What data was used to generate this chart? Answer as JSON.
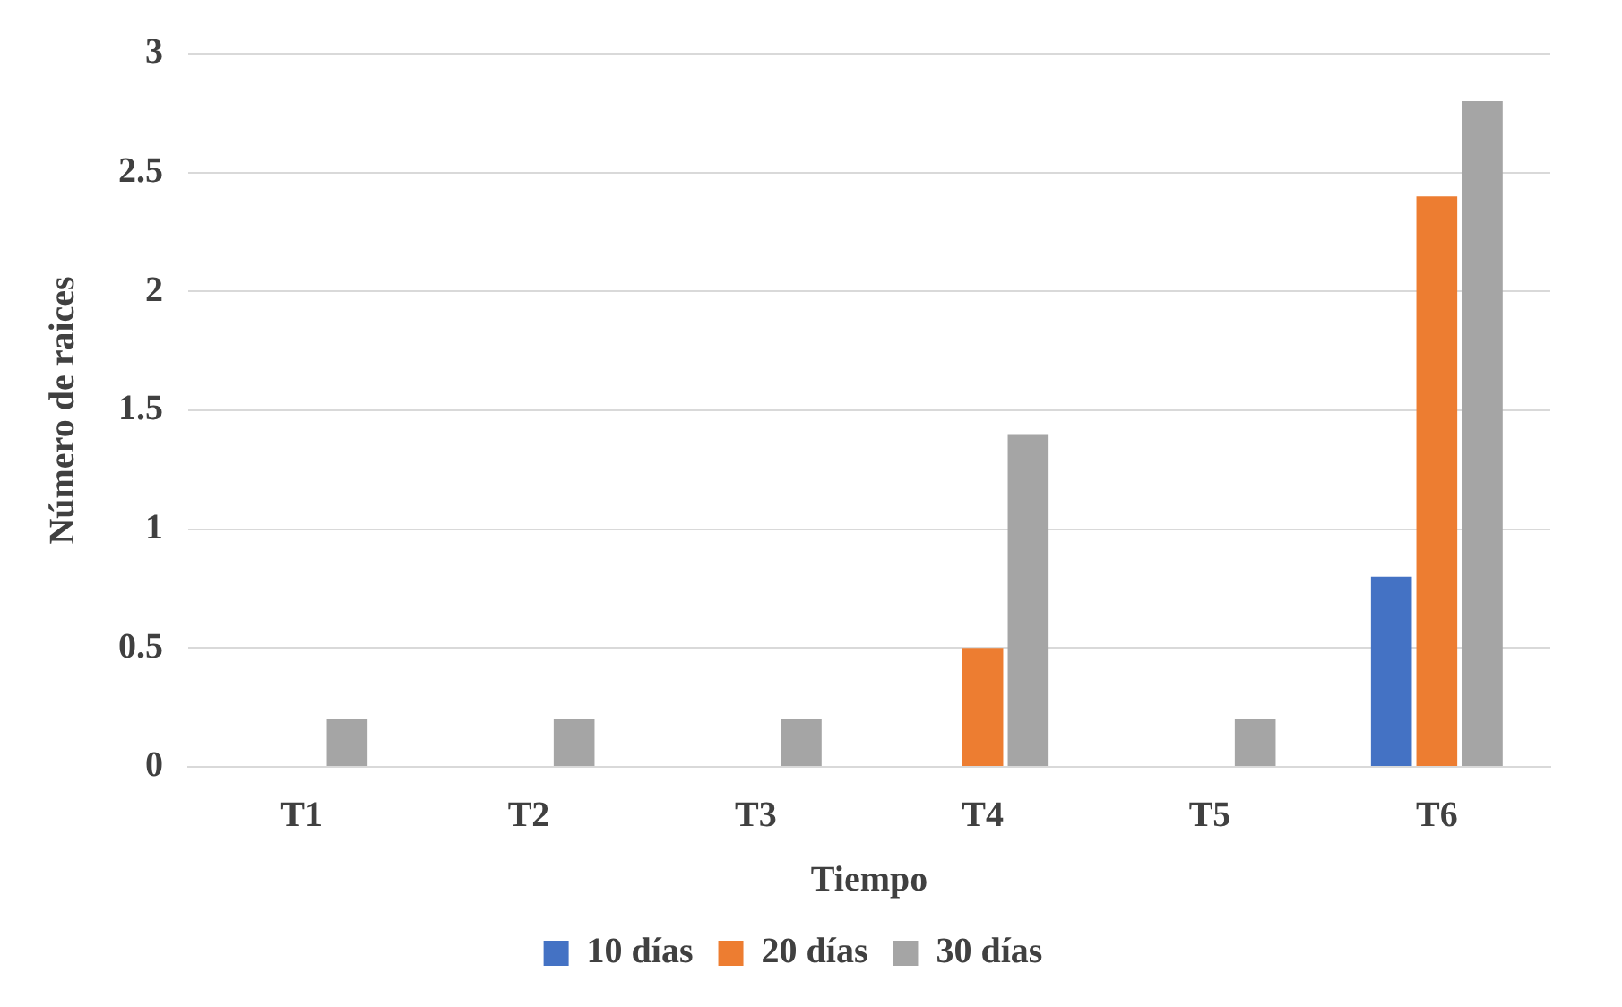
{
  "chart_data": {
    "type": "bar",
    "xlabel": "Tiempo",
    "ylabel": "Número de raices",
    "categories": [
      "T1",
      "T2",
      "T3",
      "T4",
      "T5",
      "T6"
    ],
    "series": [
      {
        "name": "10 días",
        "color": "#4472c4",
        "values": [
          0,
          0,
          0,
          0,
          0,
          0.8
        ]
      },
      {
        "name": "20 días",
        "color": "#ed7d31",
        "values": [
          0,
          0,
          0,
          0.5,
          0,
          2.4
        ]
      },
      {
        "name": "30 días",
        "color": "#a5a5a5",
        "values": [
          0.2,
          0.2,
          0.2,
          1.4,
          0.2,
          2.8
        ]
      }
    ],
    "ylim": [
      0,
      3
    ],
    "yticks": [
      0,
      0.5,
      1,
      1.5,
      2,
      2.5,
      3
    ],
    "grid": "y",
    "legend": "bottom"
  }
}
